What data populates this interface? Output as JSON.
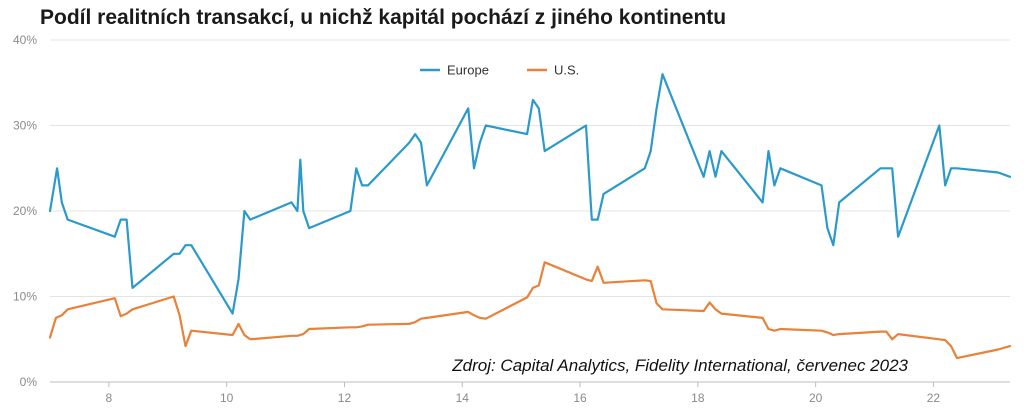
{
  "chart_data": {
    "type": "line",
    "title": "Podíl realitních transakcí, u nichž kapitál pochází z jiného kontinentu",
    "source": "Zdroj: Capital Analytics, Fidelity International, červenec 2023",
    "xlabel": "",
    "ylabel": "",
    "xlim": [
      7,
      23.3
    ],
    "xticks": [
      8,
      10,
      12,
      14,
      16,
      18,
      20,
      22
    ],
    "ylim": [
      0,
      40
    ],
    "yticks": [
      0,
      10,
      20,
      30,
      40
    ],
    "ytick_format": "%",
    "grid": true,
    "legend_position": "top-center",
    "series": [
      {
        "name": "Europe",
        "color": "#2b9acb",
        "x": [
          7.0,
          7.12,
          7.2,
          7.3,
          8.1,
          8.2,
          8.3,
          8.4,
          9.1,
          9.2,
          9.3,
          9.4,
          10.1,
          10.2,
          10.3,
          10.4,
          11.1,
          11.2,
          11.25,
          11.3,
          11.4,
          12.1,
          12.2,
          12.3,
          12.4,
          13.1,
          13.2,
          13.3,
          13.4,
          14.1,
          14.2,
          14.3,
          14.4,
          15.1,
          15.2,
          15.3,
          15.4,
          16.1,
          16.2,
          16.3,
          16.4,
          17.1,
          17.2,
          17.3,
          17.4,
          18.1,
          18.2,
          18.3,
          18.4,
          19.1,
          19.2,
          19.3,
          19.4,
          20.1,
          20.2,
          20.3,
          20.4,
          21.1,
          21.2,
          21.3,
          21.4,
          22.1,
          22.2,
          22.3,
          22.4,
          23.1,
          23.3
        ],
        "values": [
          20,
          25,
          21,
          19,
          17,
          19,
          19,
          11,
          15,
          15,
          16,
          16,
          8,
          12,
          20,
          19,
          21,
          20,
          26,
          20,
          18,
          20,
          25,
          23,
          23,
          28,
          29,
          28,
          23,
          32,
          25,
          28,
          30,
          29,
          33,
          32,
          27,
          30,
          19,
          19,
          22,
          25,
          27,
          32,
          36,
          24,
          27,
          24,
          27,
          21,
          27,
          23,
          25,
          23,
          18,
          16,
          21,
          25,
          25,
          25,
          17,
          30,
          23,
          25,
          25,
          24.5,
          24
        ]
      },
      {
        "name": "U.S.",
        "color": "#e8813a",
        "x": [
          7.0,
          7.1,
          7.2,
          7.3,
          8.1,
          8.2,
          8.3,
          8.4,
          9.1,
          9.2,
          9.3,
          9.4,
          10.1,
          10.2,
          10.3,
          10.4,
          11.1,
          11.2,
          11.3,
          11.4,
          12.1,
          12.2,
          12.3,
          12.4,
          13.1,
          13.2,
          13.3,
          13.4,
          14.1,
          14.2,
          14.3,
          14.4,
          15.1,
          15.2,
          15.3,
          15.4,
          16.1,
          16.2,
          16.3,
          16.4,
          17.1,
          17.2,
          17.3,
          17.4,
          18.1,
          18.2,
          18.3,
          18.4,
          19.1,
          19.2,
          19.3,
          19.4,
          20.1,
          20.2,
          20.3,
          20.4,
          21.1,
          21.2,
          21.3,
          21.4,
          22.1,
          22.2,
          22.3,
          22.4,
          23.1,
          23.3
        ],
        "values": [
          5.2,
          7.5,
          7.8,
          8.5,
          9.8,
          7.7,
          8.0,
          8.5,
          10.0,
          7.8,
          4.2,
          6.0,
          5.5,
          6.8,
          5.5,
          5.0,
          5.4,
          5.4,
          5.6,
          6.2,
          6.4,
          6.4,
          6.5,
          6.7,
          6.8,
          7.0,
          7.4,
          7.5,
          8.2,
          7.8,
          7.5,
          7.4,
          9.9,
          11.0,
          11.3,
          14.0,
          12.0,
          11.8,
          13.5,
          11.6,
          11.9,
          11.8,
          9.2,
          8.5,
          8.3,
          9.3,
          8.5,
          8.0,
          7.5,
          6.2,
          6.0,
          6.2,
          6.0,
          5.8,
          5.5,
          5.6,
          5.9,
          5.9,
          5.0,
          5.6,
          5.0,
          4.9,
          4.2,
          2.8,
          3.8,
          4.2
        ]
      }
    ]
  }
}
